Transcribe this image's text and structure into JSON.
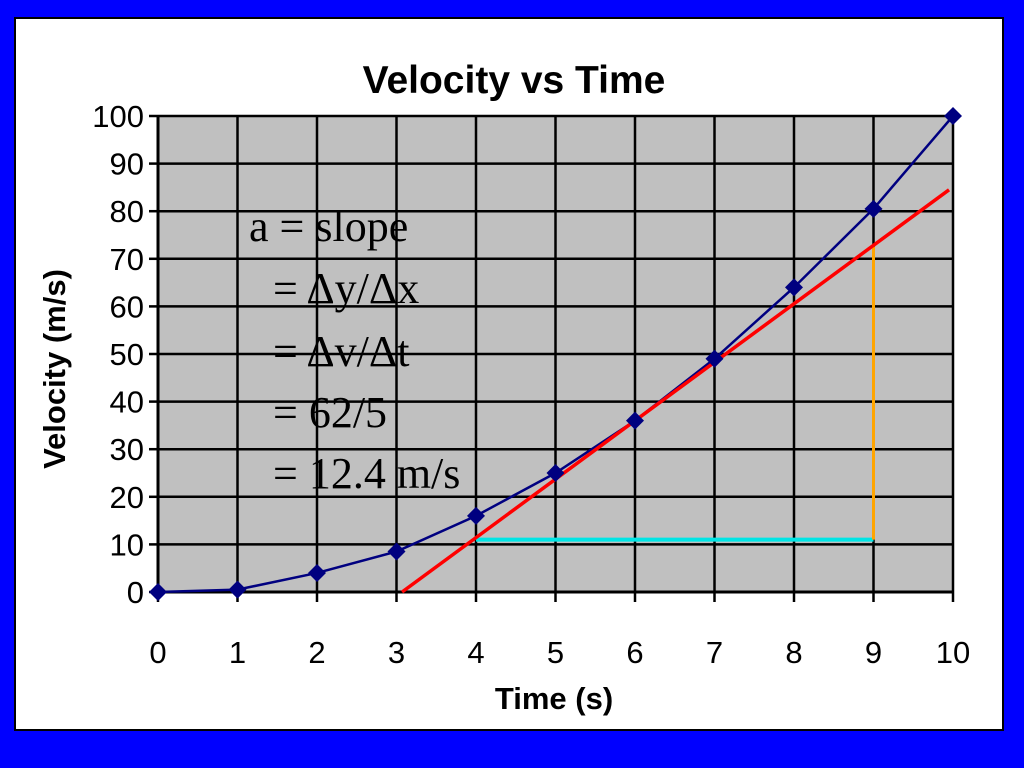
{
  "chart_data": {
    "type": "line",
    "title": "Velocity vs Time",
    "xlabel": "Time (s)",
    "ylabel": "Velocity (m/s)",
    "xlim": [
      0,
      10
    ],
    "ylim": [
      0,
      100
    ],
    "x_ticks": [
      0,
      1,
      2,
      3,
      4,
      5,
      6,
      7,
      8,
      9,
      10
    ],
    "y_ticks": [
      0,
      10,
      20,
      30,
      40,
      50,
      60,
      70,
      80,
      90,
      100
    ],
    "grid": true,
    "series": [
      {
        "x": [
          0,
          1,
          2,
          3,
          4,
          5,
          6,
          7,
          8,
          9,
          10
        ],
        "y": [
          0,
          0.5,
          4,
          8.5,
          16,
          25,
          36,
          49,
          64,
          80.5,
          100
        ],
        "marker": "diamond",
        "color": "#000080"
      }
    ],
    "tangent_line": {
      "x": [
        3.07,
        9.95
      ],
      "y": [
        0,
        84.5
      ],
      "color": "#ff0000"
    },
    "rise_segment": {
      "x": [
        9,
        9
      ],
      "y": [
        11,
        72.5
      ],
      "color": "#ffa500"
    },
    "run_segment": {
      "x": [
        4,
        9
      ],
      "y": [
        11,
        11
      ],
      "color": "#00e5e5"
    },
    "annotation": {
      "lines": [
        "a = slope",
        "= Δy/Δx",
        "= Δv/Δt",
        "= 62/5",
        "= 12.4 m/s"
      ]
    },
    "colors": {
      "plot_background": "#c0c0c0",
      "frame": "#0000ff"
    }
  }
}
